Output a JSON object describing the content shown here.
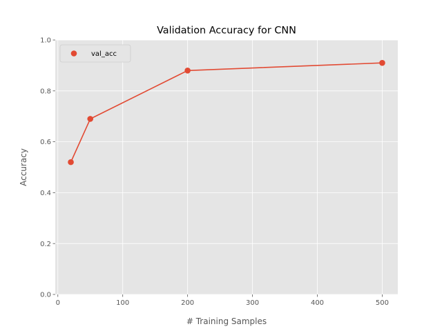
{
  "chart_data": {
    "type": "line",
    "title": "Validation Accuracy for CNN",
    "xlabel": "# Training Samples",
    "ylabel": "Accuracy",
    "xlim": [
      -4,
      524
    ],
    "ylim": [
      0.0,
      1.0
    ],
    "xticks": [
      0,
      100,
      200,
      300,
      400,
      500
    ],
    "yticks": [
      0.0,
      0.2,
      0.4,
      0.6,
      0.8,
      1.0
    ],
    "xtick_labels": [
      "0",
      "100",
      "200",
      "300",
      "400",
      "500"
    ],
    "ytick_labels": [
      "0.0",
      "0.2",
      "0.4",
      "0.6",
      "0.8",
      "1.0"
    ],
    "grid": true,
    "legend_position": "top-left",
    "series": [
      {
        "name": "val_acc",
        "color": "#E24A33",
        "x": [
          20,
          50,
          200,
          500
        ],
        "y": [
          0.52,
          0.69,
          0.88,
          0.91
        ]
      }
    ],
    "style": {
      "plot_background": "#E5E5E5",
      "grid_color": "#FFFFFF",
      "tick_color": "#555555"
    }
  }
}
